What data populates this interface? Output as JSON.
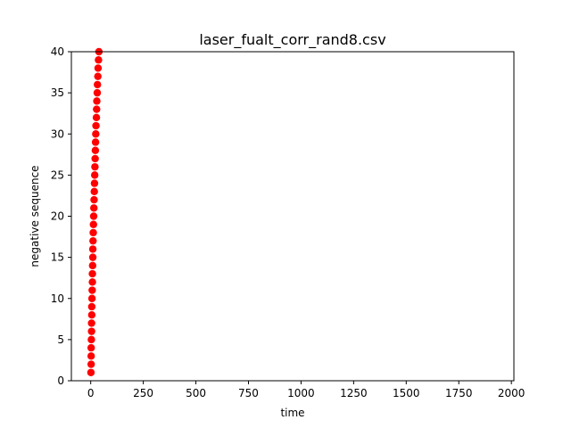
{
  "chart_data": {
    "type": "scatter",
    "title": "laser_fualt_corr_rand8.csv",
    "xlabel": "time",
    "ylabel": "negative sequence",
    "xlim": [
      -92,
      2012
    ],
    "ylim": [
      0,
      40
    ],
    "x_ticks": [
      0,
      250,
      500,
      750,
      1000,
      1250,
      1500,
      1750,
      2000
    ],
    "y_ticks": [
      0,
      5,
      10,
      15,
      20,
      25,
      30,
      35,
      40
    ],
    "grid": false,
    "marker_color": "#ff0000",
    "series": [
      {
        "points": [
          [
            1,
            1
          ],
          [
            2,
            2
          ],
          [
            2,
            3
          ],
          [
            2,
            4
          ],
          [
            3,
            5
          ],
          [
            4,
            6
          ],
          [
            4,
            7
          ],
          [
            5,
            8
          ],
          [
            5,
            9
          ],
          [
            6,
            10
          ],
          [
            7,
            11
          ],
          [
            8,
            12
          ],
          [
            8,
            13
          ],
          [
            9,
            14
          ],
          [
            10,
            15
          ],
          [
            10,
            16
          ],
          [
            11,
            17
          ],
          [
            12,
            18
          ],
          [
            13,
            19
          ],
          [
            14,
            20
          ],
          [
            15,
            21
          ],
          [
            16,
            22
          ],
          [
            17,
            23
          ],
          [
            18,
            24
          ],
          [
            19,
            25
          ],
          [
            20,
            26
          ],
          [
            21,
            27
          ],
          [
            22,
            28
          ],
          [
            23,
            29
          ],
          [
            24,
            30
          ],
          [
            25,
            31
          ],
          [
            27,
            32
          ],
          [
            28,
            33
          ],
          [
            29,
            34
          ],
          [
            31,
            35
          ],
          [
            32,
            36
          ],
          [
            34,
            37
          ],
          [
            35,
            38
          ],
          [
            37,
            39
          ],
          [
            39,
            40
          ]
        ]
      }
    ]
  }
}
